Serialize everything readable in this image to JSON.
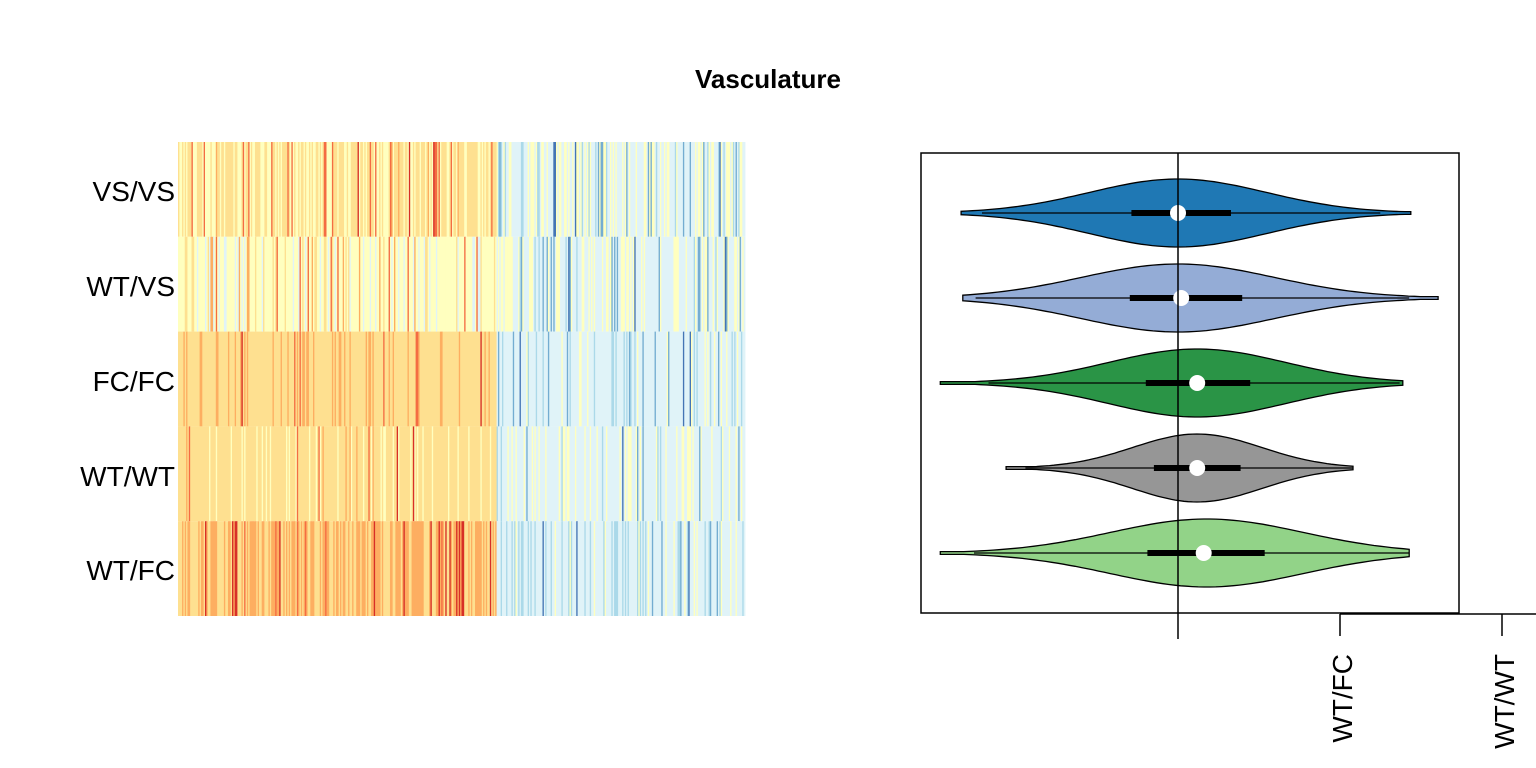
{
  "title": "Vasculature",
  "heatmap_panel": {
    "row_labels": [
      "VS/VS",
      "WT/VS",
      "FC/FC",
      "WT/WT",
      "WT/FC"
    ],
    "palette": [
      "#d73027",
      "#f46d43",
      "#fdae61",
      "#fee090",
      "#ffffbf",
      "#e0f3f8",
      "#abd9e9",
      "#74add1",
      "#4575b4"
    ]
  },
  "violin_panel": {
    "x_tick_labels": [
      "WT/FC",
      "WT/WT"
    ]
  },
  "chart_data": [
    {
      "type": "heatmap",
      "rows": [
        "VS/VS",
        "WT/VS",
        "FC/FC",
        "WT/WT",
        "WT/FC"
      ],
      "columns": 420,
      "colormap": "RdYlBu (red = high, blue = low)",
      "row_patterns": [
        {
          "row": "VS/VS",
          "left_tone": "yellow-orange mix",
          "right_tone": "pale yellow / light blue",
          "split_fraction": 0.56
        },
        {
          "row": "WT/VS",
          "left_tone": "pale yellow with red streaks",
          "right_tone": "pale yellow / light blue",
          "split_fraction": 0.56
        },
        {
          "row": "FC/FC",
          "left_tone": "orange",
          "right_tone": "light blue",
          "split_fraction": 0.56
        },
        {
          "row": "WT/WT",
          "left_tone": "yellow-orange",
          "right_tone": "pale yellow / light blue",
          "split_fraction": 0.56
        },
        {
          "row": "WT/FC",
          "left_tone": "orange-red",
          "right_tone": "light blue",
          "split_fraction": 0.56
        }
      ],
      "grid": false,
      "legend": "none"
    },
    {
      "type": "violin",
      "orientation": "horizontal",
      "reference_line_x": 0,
      "xlim": [
        -1.6,
        1.75
      ],
      "groups": [
        {
          "color": "#1f78b4",
          "min": -1.35,
          "q1": -0.29,
          "median": 0.0,
          "q3": 0.33,
          "max": 1.45,
          "whisker_low": -1.22,
          "whisker_high": 1.26,
          "peak": 0.0,
          "spread": 0.55,
          "max_density": 1.0
        },
        {
          "color": "#94acd6",
          "min": -1.34,
          "q1": -0.3,
          "median": 0.02,
          "q3": 0.4,
          "max": 1.62,
          "whisker_low": -1.26,
          "whisker_high": 1.44,
          "peak": 0.0,
          "spread": 0.6,
          "max_density": 1.0
        },
        {
          "color": "#2a9446",
          "min": -1.48,
          "q1": -0.2,
          "median": 0.12,
          "q3": 0.45,
          "max": 1.4,
          "whisker_low": -1.18,
          "whisker_high": 1.38,
          "peak": 0.12,
          "spread": 0.55,
          "max_density": 1.0
        },
        {
          "color": "#969696",
          "min": -1.07,
          "q1": -0.15,
          "median": 0.12,
          "q3": 0.39,
          "max": 1.09,
          "whisker_low": -0.95,
          "whisker_high": 1.09,
          "peak": 0.12,
          "spread": 0.4,
          "max_density": 1.0
        },
        {
          "color": "#92d388",
          "min": -1.48,
          "q1": -0.19,
          "median": 0.16,
          "q3": 0.54,
          "max": 1.44,
          "whisker_low": -1.27,
          "whisker_high": 1.44,
          "peak": 0.18,
          "spread": 0.6,
          "max_density": 1.0
        }
      ],
      "x_tick_labels": [
        "WT/FC",
        "WT/WT"
      ],
      "grid": false,
      "legend": "none"
    }
  ]
}
